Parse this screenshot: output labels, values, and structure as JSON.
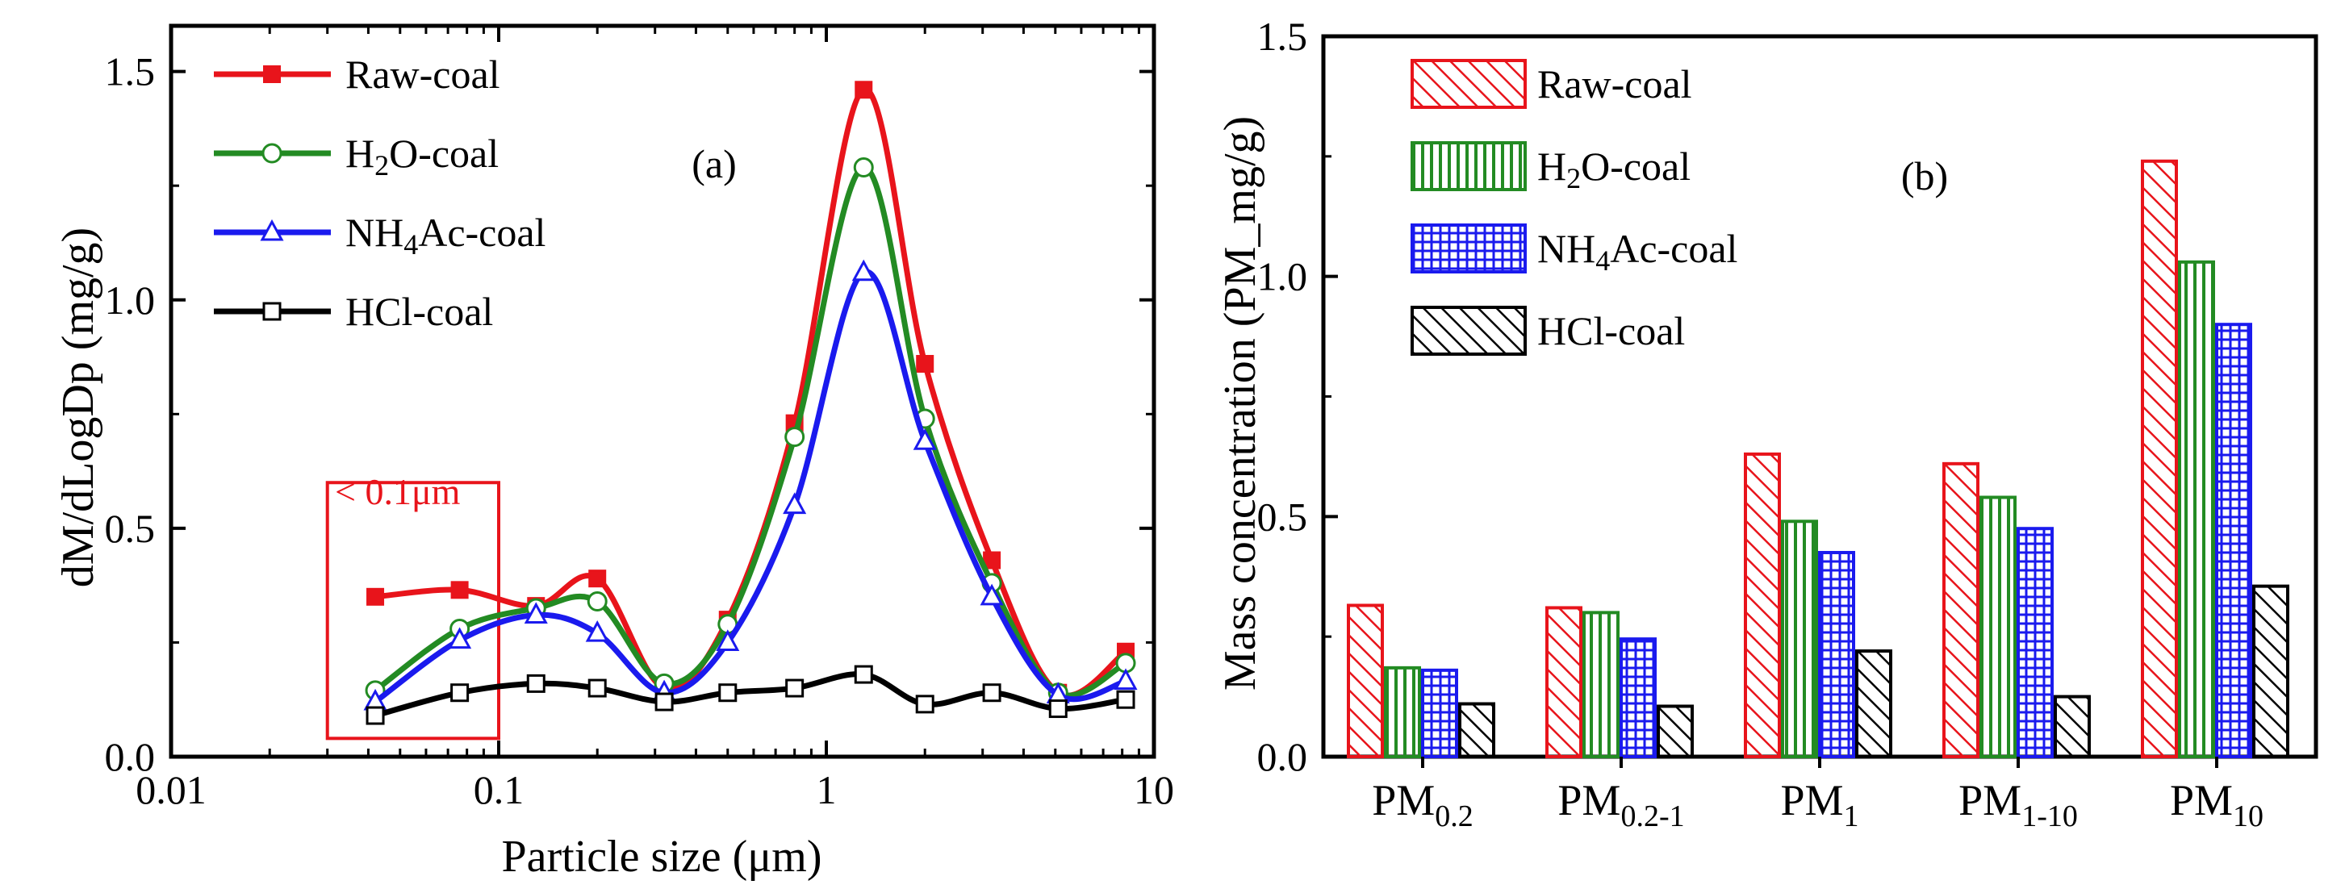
{
  "chart_data": [
    {
      "panel_label": "(a)",
      "type": "line",
      "xscale": "log",
      "xlim": [
        0.01,
        10
      ],
      "ylim": [
        0.0,
        1.6
      ],
      "xticks": [
        "0.01",
        "0.1",
        "1",
        "10"
      ],
      "yticks": [
        "0.0",
        "0.5",
        "1.0",
        "1.5"
      ],
      "xlabel": "Particle size (μm)",
      "ylabel": "dM/dLogDp (mg/g)",
      "legend_position": "top-left",
      "annotation": {
        "text": "< 0.1μm",
        "box_x_range": [
          0.03,
          0.1
        ],
        "box_y_range": [
          0.04,
          0.6
        ]
      },
      "x": [
        0.042,
        0.076,
        0.13,
        0.2,
        0.32,
        0.5,
        0.8,
        1.3,
        2.0,
        3.2,
        5.1,
        8.2
      ],
      "series": [
        {
          "name": "Raw-coal",
          "color": "#e8141b",
          "marker": "filled-square",
          "values": [
            0.35,
            0.365,
            0.33,
            0.39,
            0.15,
            0.3,
            0.73,
            1.46,
            0.86,
            0.43,
            0.14,
            0.23
          ]
        },
        {
          "name": "H2O-coal",
          "color": "#238b23",
          "marker": "open-circle",
          "values": [
            0.145,
            0.28,
            0.325,
            0.34,
            0.16,
            0.29,
            0.7,
            1.29,
            0.74,
            0.38,
            0.14,
            0.205
          ]
        },
        {
          "name": "NH4Ac-coal",
          "color": "#1a1aee",
          "marker": "open-triangle",
          "values": [
            0.12,
            0.255,
            0.31,
            0.27,
            0.14,
            0.25,
            0.55,
            1.06,
            0.69,
            0.35,
            0.135,
            0.165
          ]
        },
        {
          "name": "HCl-coal",
          "color": "#000000",
          "marker": "open-square",
          "values": [
            0.09,
            0.14,
            0.16,
            0.15,
            0.12,
            0.14,
            0.15,
            0.18,
            0.115,
            0.14,
            0.105,
            0.125
          ]
        }
      ]
    },
    {
      "panel_label": "(b)",
      "type": "bar",
      "ylim": [
        0.0,
        1.5
      ],
      "yticks": [
        "0.0",
        "0.5",
        "1.0",
        "1.5"
      ],
      "xlabel": "",
      "ylabel": "Mass concentration (PM_mg/g)",
      "legend_position": "top-left",
      "categories": [
        {
          "base": "PM",
          "sub": "0.2"
        },
        {
          "base": "PM",
          "sub": "0.2-1"
        },
        {
          "base": "PM",
          "sub": "1"
        },
        {
          "base": "PM",
          "sub": "1-10"
        },
        {
          "base": "PM",
          "sub": "10"
        }
      ],
      "series": [
        {
          "name": "Raw-coal",
          "color": "#e8141b",
          "pattern": "diagonal-hatch",
          "values": [
            0.315,
            0.31,
            0.63,
            0.61,
            1.24
          ]
        },
        {
          "name": "H2O-coal",
          "color": "#238b23",
          "pattern": "vertical-lines",
          "values": [
            0.185,
            0.3,
            0.49,
            0.54,
            1.03
          ]
        },
        {
          "name": "NH4Ac-coal",
          "color": "#1a1aee",
          "pattern": "grid",
          "values": [
            0.18,
            0.245,
            0.425,
            0.475,
            0.9
          ]
        },
        {
          "name": "HCl-coal",
          "color": "#000000",
          "pattern": "diagonal-hatch",
          "values": [
            0.11,
            0.105,
            0.22,
            0.125,
            0.355
          ]
        }
      ]
    }
  ]
}
